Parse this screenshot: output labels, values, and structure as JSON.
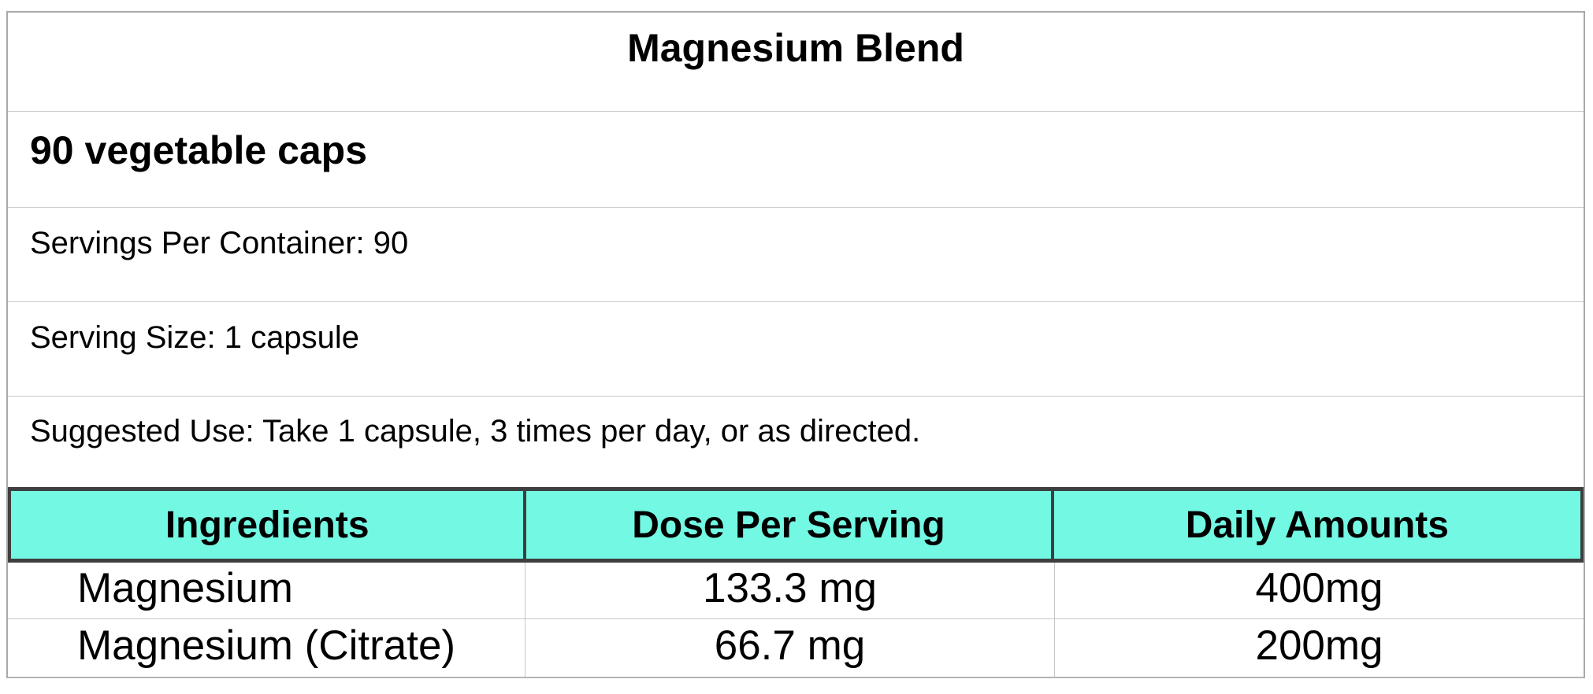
{
  "label": {
    "title": "Magnesium Blend",
    "subtitle": "90 vegetable caps",
    "servings_per_container": "Servings Per Container: 90",
    "serving_size": "Serving Size: 1 capsule",
    "suggested_use": "Suggested Use: Take 1 capsule, 3 times per day, or as directed.",
    "colors": {
      "header_background": "#72f8e3",
      "header_border": "#3e3e3e",
      "outer_border": "#a8a8a8",
      "row_separator": "#c9c9c9"
    },
    "table": {
      "columns": [
        "Ingredients",
        "Dose Per Serving",
        "Daily Amounts"
      ],
      "rows": [
        {
          "ingredient": "Magnesium",
          "dose_per_serving": "133.3 mg",
          "daily_amount": "400mg"
        },
        {
          "ingredient": "Magnesium (Citrate)",
          "dose_per_serving": "66.7 mg",
          "daily_amount": "200mg"
        }
      ]
    }
  }
}
